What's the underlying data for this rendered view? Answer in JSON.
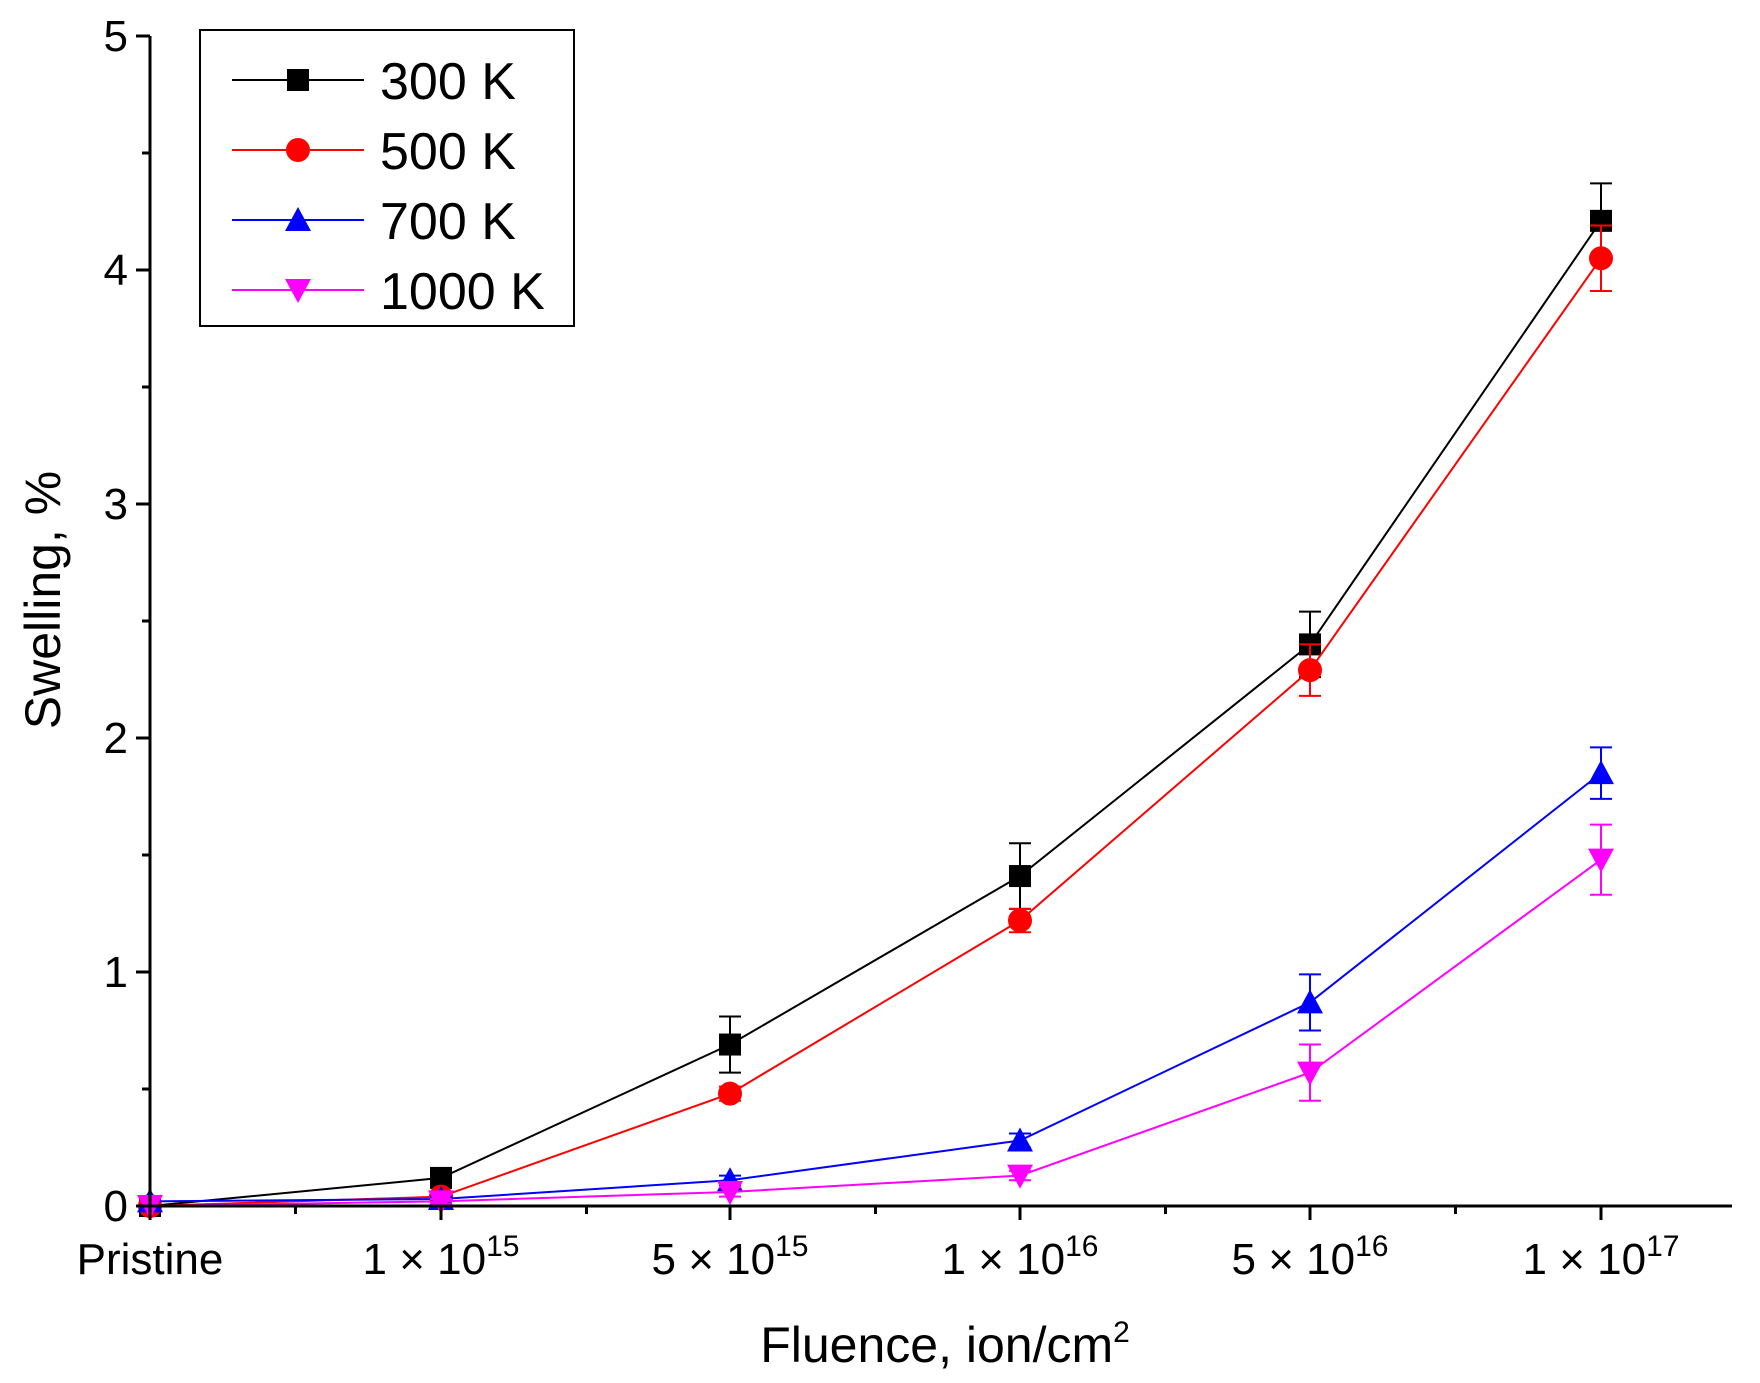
{
  "chart_data": {
    "type": "line",
    "title": "",
    "xlabel": "Fluence, ion/cm",
    "xlabel_sup": "2",
    "ylabel": "Swelling, %",
    "ylim": [
      0,
      5
    ],
    "yticks": [
      "0",
      "1",
      "2",
      "3",
      "4",
      "5"
    ],
    "categories": [
      {
        "base": "Pristine",
        "exp": ""
      },
      {
        "base": "1 × 10",
        "exp": "15"
      },
      {
        "base": "5 × 10",
        "exp": "15"
      },
      {
        "base": "1 × 10",
        "exp": "16"
      },
      {
        "base": "5 × 10",
        "exp": "16"
      },
      {
        "base": "1 × 10",
        "exp": "17"
      }
    ],
    "legend_position": "top-left",
    "series": [
      {
        "name": "300 K",
        "color": "#000000",
        "marker": "square",
        "values": [
          0.0,
          0.12,
          0.69,
          1.41,
          2.4,
          4.21
        ],
        "errors": [
          0,
          0.02,
          0.12,
          0.14,
          0.14,
          0.16
        ]
      },
      {
        "name": "500 K",
        "color": "#ff0000",
        "marker": "circle",
        "values": [
          0.0,
          0.04,
          0.48,
          1.22,
          2.29,
          4.05
        ],
        "errors": [
          0,
          0.01,
          0.03,
          0.05,
          0.11,
          0.14
        ]
      },
      {
        "name": "700 K",
        "color": "#0000ff",
        "marker": "triangle-up",
        "values": [
          0.02,
          0.03,
          0.11,
          0.28,
          0.87,
          1.85
        ],
        "errors": [
          0,
          0.01,
          0.02,
          0.03,
          0.12,
          0.11
        ]
      },
      {
        "name": "1000 K",
        "color": "#ff00ff",
        "marker": "triangle-down",
        "values": [
          0.0,
          0.02,
          0.06,
          0.13,
          0.57,
          1.48
        ],
        "errors": [
          0,
          0.01,
          0.02,
          0.02,
          0.12,
          0.15
        ]
      }
    ]
  }
}
